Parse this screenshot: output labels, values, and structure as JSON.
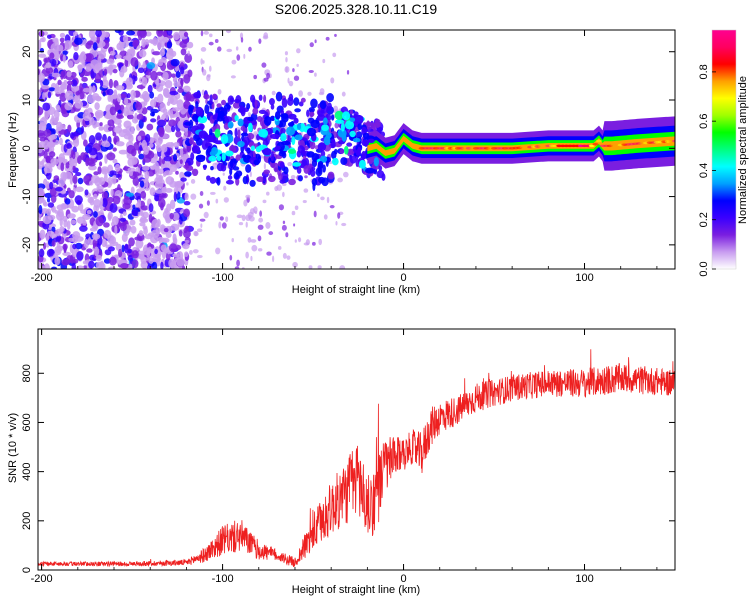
{
  "title": "S206.2025.328.10.11.C19",
  "chart_data": [
    {
      "type": "heatmap",
      "name": "spectrogram",
      "xlabel": "Height of straight line (km)",
      "ylabel": "Frequency (Hz)",
      "xlim": [
        -202,
        150
      ],
      "ylim": [
        -25,
        24.5
      ],
      "xticks": [
        -200,
        -100,
        0,
        100
      ],
      "yticks": [
        -20,
        -10,
        0,
        10,
        20
      ],
      "colorbar": {
        "label": "Normalized spectral amplitude",
        "range": [
          0,
          0.97
        ],
        "ticks": [
          "0.0",
          "0.2",
          "0.4",
          "0.6",
          "0.8"
        ],
        "colors": [
          "#ffffff",
          "#c89cf0",
          "#7a1ee0",
          "#3a00ff",
          "#0000ff",
          "#00a0ff",
          "#00ffff",
          "#00ff80",
          "#00ff00",
          "#a0ff00",
          "#ffff00",
          "#ffa000",
          "#ff0000",
          "#ff0060",
          "#ff0090"
        ]
      },
      "ridge": {
        "x": [
          -120,
          -110,
          -100,
          -90,
          -80,
          -70,
          -60,
          -50,
          -40,
          -30,
          -25,
          -20,
          -15,
          -10,
          -5,
          0,
          5,
          10,
          20,
          40,
          60,
          80,
          100,
          105,
          108,
          110,
          115,
          130,
          150
        ],
        "freq": [
          3,
          2.5,
          2,
          1.5,
          1.5,
          2,
          1.5,
          1,
          2,
          2.5,
          1.5,
          0,
          0.5,
          -1,
          -0.5,
          2,
          0.5,
          0,
          0,
          0,
          0,
          0.5,
          0.5,
          0.5,
          1.5,
          0.5,
          0.5,
          1,
          1.5
        ]
      }
    },
    {
      "type": "line",
      "name": "snr",
      "xlabel": "Height of straight line (km)",
      "ylabel": "SNR (10 * v/v)",
      "xlim": [
        -202,
        150
      ],
      "ylim": [
        0,
        980
      ],
      "xticks": [
        -200,
        -100,
        0,
        100
      ],
      "yticks": [
        0,
        200,
        400,
        600,
        800
      ],
      "color": "#ee2020",
      "envelope": {
        "x": [
          -202,
          -150,
          -120,
          -110,
          -100,
          -90,
          -85,
          -80,
          -70,
          -60,
          -50,
          -40,
          -30,
          -25,
          -20,
          -15,
          -10,
          -5,
          0,
          5,
          10,
          15,
          20,
          30,
          40,
          50,
          60,
          80,
          100,
          120,
          150
        ],
        "mean": [
          25,
          25,
          30,
          60,
          120,
          140,
          110,
          80,
          60,
          30,
          150,
          250,
          330,
          380,
          250,
          300,
          430,
          450,
          480,
          500,
          470,
          580,
          620,
          650,
          700,
          720,
          740,
          760,
          760,
          780,
          760
        ],
        "spread": [
          8,
          10,
          12,
          30,
          60,
          70,
          50,
          40,
          25,
          20,
          80,
          110,
          140,
          160,
          130,
          150,
          120,
          90,
          60,
          70,
          90,
          80,
          70,
          60,
          60,
          55,
          55,
          55,
          60,
          60,
          55
        ]
      }
    }
  ]
}
